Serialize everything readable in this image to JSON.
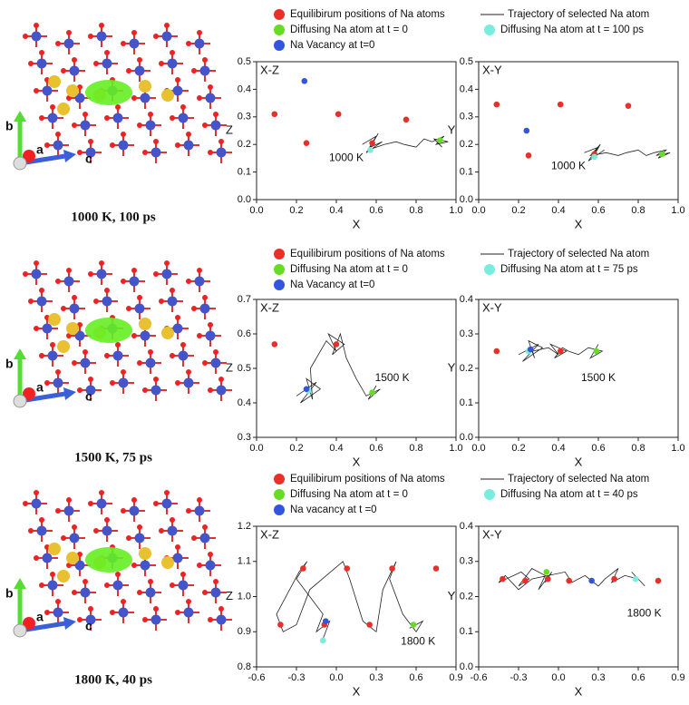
{
  "structures": [
    {
      "caption": "1000 K,  100 ps",
      "axes": [
        "b",
        "a",
        "c"
      ]
    },
    {
      "caption": "1500 K,  75 ps",
      "axes": [
        "b",
        "a",
        "c"
      ]
    },
    {
      "caption": "1800 K,  40 ps",
      "axes": [
        "b",
        "a",
        "c"
      ]
    }
  ],
  "chart_data": [
    {
      "type": "scatter",
      "title": "X-Z",
      "annotation": "1000 K",
      "xlabel": "X",
      "ylabel": "Z",
      "xlim": [
        0,
        1
      ],
      "ylim": [
        0,
        0.5
      ],
      "xticks": [
        {
          "value": 0,
          "label": "0.0"
        },
        0.2,
        0.4,
        0.6,
        0.8,
        {
          "value": 1,
          "label": "1.0"
        }
      ],
      "yticks": [
        {
          "value": 0,
          "label": "0.0"
        },
        0.1,
        0.2,
        0.3,
        0.4,
        0.5
      ],
      "series": [
        {
          "name": "Equilibirum positions of Na atoms",
          "color": "#e8302a",
          "x": [
            0.09,
            0.25,
            0.41,
            0.58,
            0.75
          ],
          "values": [
            0.31,
            0.205,
            0.31,
            0.205,
            0.29
          ]
        },
        {
          "name": "Trajectory of selected Na atom",
          "color": "#222222",
          "style": "line",
          "x": [
            0.53,
            0.6,
            0.55,
            0.63,
            0.57,
            0.61,
            0.56,
            0.64,
            0.7,
            0.74,
            0.8,
            0.84,
            0.88,
            0.94,
            0.9,
            0.96,
            0.89,
            0.93
          ],
          "values": [
            0.2,
            0.23,
            0.17,
            0.21,
            0.19,
            0.24,
            0.18,
            0.2,
            0.21,
            0.2,
            0.19,
            0.22,
            0.21,
            0.23,
            0.2,
            0.21,
            0.22,
            0.19
          ]
        },
        {
          "name": "Diffusing Na atom at t = 0",
          "color": "#66dd22",
          "x": [
            0.92
          ],
          "values": [
            0.215
          ]
        },
        {
          "name": "Diffusing Na atom at t = 100 ps",
          "color": "#77eedd",
          "x": [
            0.57
          ],
          "values": [
            0.18
          ]
        },
        {
          "name": "Na Vacancy at t=0",
          "color": "#3355dd",
          "x": [
            0.24
          ],
          "values": [
            0.43
          ]
        }
      ]
    },
    {
      "type": "scatter",
      "title": "X-Y",
      "annotation": "1000 K",
      "xlabel": "X",
      "ylabel": "Y",
      "xlim": [
        0,
        1
      ],
      "ylim": [
        0,
        0.5
      ],
      "xticks": [
        {
          "value": 0,
          "label": "0.0"
        },
        0.2,
        0.4,
        0.6,
        0.8,
        {
          "value": 1,
          "label": "1.0"
        }
      ],
      "yticks": [
        {
          "value": 0,
          "label": "0.0"
        },
        0.1,
        0.2,
        0.3,
        0.4,
        0.5
      ],
      "series": [
        {
          "color": "#e8302a",
          "x": [
            0.09,
            0.25,
            0.41,
            0.58,
            0.75
          ],
          "values": [
            0.345,
            0.16,
            0.345,
            0.165,
            0.34
          ]
        },
        {
          "color": "#222222",
          "style": "line",
          "x": [
            0.53,
            0.6,
            0.55,
            0.63,
            0.57,
            0.61,
            0.56,
            0.64,
            0.7,
            0.74,
            0.8,
            0.84,
            0.88,
            0.94,
            0.9,
            0.96,
            0.89,
            0.93
          ],
          "values": [
            0.17,
            0.19,
            0.14,
            0.18,
            0.15,
            0.2,
            0.16,
            0.17,
            0.16,
            0.17,
            0.18,
            0.16,
            0.17,
            0.18,
            0.15,
            0.17,
            0.16,
            0.18
          ]
        },
        {
          "color": "#66dd22",
          "x": [
            0.92
          ],
          "values": [
            0.165
          ]
        },
        {
          "color": "#77eedd",
          "x": [
            0.58
          ],
          "values": [
            0.155
          ]
        },
        {
          "color": "#3355dd",
          "x": [
            0.24
          ],
          "values": [
            0.25
          ]
        }
      ]
    },
    {
      "type": "scatter",
      "title": "X-Z",
      "annotation": "1500 K",
      "xlabel": "X",
      "ylabel": "Z",
      "xlim": [
        0,
        1
      ],
      "ylim": [
        0.3,
        0.7
      ],
      "xticks": [
        {
          "value": 0,
          "label": "0.0"
        },
        0.2,
        0.4,
        0.6,
        0.8,
        {
          "value": 1,
          "label": "1.0"
        }
      ],
      "yticks": [
        0.3,
        0.4,
        0.5,
        0.6,
        0.7
      ],
      "series": [
        {
          "name": "Equilibirum positions of Na atoms",
          "color": "#e8302a",
          "x": [
            0.09,
            0.4
          ],
          "values": [
            0.57,
            0.57
          ]
        },
        {
          "name": "Trajectory of selected Na atom",
          "color": "#222222",
          "style": "line",
          "x": [
            0.2,
            0.3,
            0.22,
            0.32,
            0.25,
            0.28,
            0.27,
            0.35,
            0.4,
            0.36,
            0.44,
            0.38,
            0.42,
            0.45,
            0.5,
            0.55,
            0.62,
            0.56,
            0.6
          ],
          "values": [
            0.42,
            0.46,
            0.4,
            0.44,
            0.47,
            0.41,
            0.5,
            0.58,
            0.55,
            0.6,
            0.57,
            0.54,
            0.6,
            0.53,
            0.47,
            0.42,
            0.44,
            0.41,
            0.45
          ]
        },
        {
          "name": "Diffusing Na atom at t = 0",
          "color": "#66dd22",
          "x": [
            0.58
          ],
          "values": [
            0.43
          ]
        },
        {
          "name": "Diffusing Na atom at t = 75 ps",
          "color": "#77eedd",
          "x": [
            0.26
          ],
          "values": [
            0.435
          ]
        },
        {
          "name": "Na Vacancy at t=0",
          "color": "#3355dd",
          "x": [
            0.25
          ],
          "values": [
            0.44
          ]
        }
      ]
    },
    {
      "type": "scatter",
      "title": "X-Y",
      "annotation": "1500 K",
      "xlabel": "X",
      "ylabel": "Y",
      "xlim": [
        0,
        1
      ],
      "ylim": [
        0,
        0.4
      ],
      "xticks": [
        {
          "value": 0,
          "label": "0.0"
        },
        0.2,
        0.4,
        0.6,
        0.8,
        {
          "value": 1,
          "label": "1.0"
        }
      ],
      "yticks": [
        {
          "value": 0,
          "label": "0.0"
        },
        0.1,
        0.2,
        0.3,
        0.4
      ],
      "series": [
        {
          "color": "#e8302a",
          "x": [
            0.09,
            0.41
          ],
          "values": [
            0.25,
            0.25
          ]
        },
        {
          "color": "#222222",
          "style": "line",
          "x": [
            0.2,
            0.3,
            0.22,
            0.32,
            0.25,
            0.28,
            0.27,
            0.35,
            0.4,
            0.36,
            0.44,
            0.38,
            0.42,
            0.45,
            0.5,
            0.55,
            0.62,
            0.56,
            0.6
          ],
          "values": [
            0.24,
            0.27,
            0.22,
            0.26,
            0.28,
            0.23,
            0.25,
            0.26,
            0.24,
            0.27,
            0.25,
            0.23,
            0.26,
            0.25,
            0.24,
            0.26,
            0.25,
            0.23,
            0.27
          ]
        },
        {
          "color": "#66dd22",
          "x": [
            0.59
          ],
          "values": [
            0.25
          ]
        },
        {
          "color": "#77eedd",
          "x": [
            0.25
          ],
          "values": [
            0.25
          ]
        },
        {
          "color": "#3355dd",
          "x": [
            0.26
          ],
          "values": [
            0.255
          ]
        }
      ]
    },
    {
      "type": "scatter",
      "title": "X-Z",
      "annotation": "1800 K",
      "xlabel": "X",
      "ylabel": "Z",
      "xlim": [
        -0.6,
        0.9
      ],
      "ylim": [
        0.8,
        1.2
      ],
      "xticks": [
        -0.6,
        -0.3,
        {
          "value": 0,
          "label": "0.0"
        },
        0.3,
        0.6,
        0.9
      ],
      "yticks": [
        0.8,
        0.9,
        {
          "value": 1,
          "label": "1.0"
        },
        1.1,
        1.2
      ],
      "series": [
        {
          "name": "Equilibirum positions of Na atoms",
          "color": "#e8302a",
          "x": [
            -0.25,
            0.08,
            0.42,
            0.75,
            -0.42,
            -0.09,
            0.25
          ],
          "values": [
            1.08,
            1.08,
            1.08,
            1.08,
            0.92,
            0.92,
            0.92
          ]
        },
        {
          "name": "Trajectory of selected Na atom",
          "color": "#222222",
          "style": "line",
          "x": [
            -0.1,
            -0.05,
            -0.15,
            -0.1,
            -0.2,
            -0.3,
            -0.22,
            -0.28,
            -0.45,
            -0.4,
            -0.3,
            -0.2,
            0.05,
            0.1,
            0.2,
            0.3,
            0.35,
            0.45,
            0.4,
            0.5,
            0.6,
            0.65,
            0.55
          ],
          "values": [
            0.88,
            0.93,
            0.9,
            0.95,
            1.0,
            1.05,
            1.1,
            1.07,
            0.95,
            0.9,
            0.92,
            1.02,
            1.1,
            1.05,
            0.93,
            0.9,
            1.02,
            1.1,
            1.05,
            0.95,
            0.9,
            0.93,
            0.91
          ]
        },
        {
          "name": "Diffusing Na atom at t = 0",
          "color": "#66dd22",
          "x": [
            0.58
          ],
          "values": [
            0.92
          ]
        },
        {
          "name": "Diffusing Na atom at t = 40 ps",
          "color": "#77eedd",
          "x": [
            -0.1
          ],
          "values": [
            0.875
          ]
        },
        {
          "name": "Na vacancy at t =0",
          "color": "#3355dd",
          "x": [
            -0.08
          ],
          "values": [
            0.93
          ]
        }
      ]
    },
    {
      "type": "scatter",
      "title": "X-Y",
      "annotation": "1800 K",
      "xlabel": "X",
      "ylabel": "Y",
      "xlim": [
        -0.6,
        0.9
      ],
      "ylim": [
        0,
        0.4
      ],
      "xticks": [
        -0.6,
        -0.3,
        {
          "value": 0,
          "label": "0.0"
        },
        0.3,
        0.6,
        0.9
      ],
      "yticks": [
        {
          "value": 0,
          "label": "0.0"
        },
        0.1,
        0.2,
        0.3,
        0.4
      ],
      "series": [
        {
          "color": "#e8302a",
          "x": [
            -0.42,
            -0.25,
            -0.08,
            0.08,
            0.42,
            0.75
          ],
          "values": [
            0.25,
            0.245,
            0.25,
            0.245,
            0.25,
            0.245
          ]
        },
        {
          "color": "#222222",
          "style": "line",
          "x": [
            -0.1,
            -0.05,
            -0.15,
            -0.1,
            -0.2,
            -0.3,
            -0.22,
            -0.28,
            -0.45,
            -0.4,
            -0.3,
            -0.2,
            0.05,
            0.1,
            0.2,
            0.3,
            0.35,
            0.45,
            0.4,
            0.5,
            0.6,
            0.65,
            0.55
          ],
          "values": [
            0.24,
            0.27,
            0.22,
            0.26,
            0.28,
            0.23,
            0.25,
            0.27,
            0.24,
            0.26,
            0.22,
            0.25,
            0.27,
            0.24,
            0.26,
            0.23,
            0.25,
            0.28,
            0.24,
            0.26,
            0.25,
            0.23,
            0.27
          ]
        },
        {
          "color": "#66dd22",
          "x": [
            -0.09
          ],
          "values": [
            0.27
          ]
        },
        {
          "color": "#77eedd",
          "x": [
            0.58
          ],
          "values": [
            0.25
          ]
        },
        {
          "color": "#3355dd",
          "x": [
            0.25
          ],
          "values": [
            0.245
          ]
        }
      ]
    }
  ]
}
